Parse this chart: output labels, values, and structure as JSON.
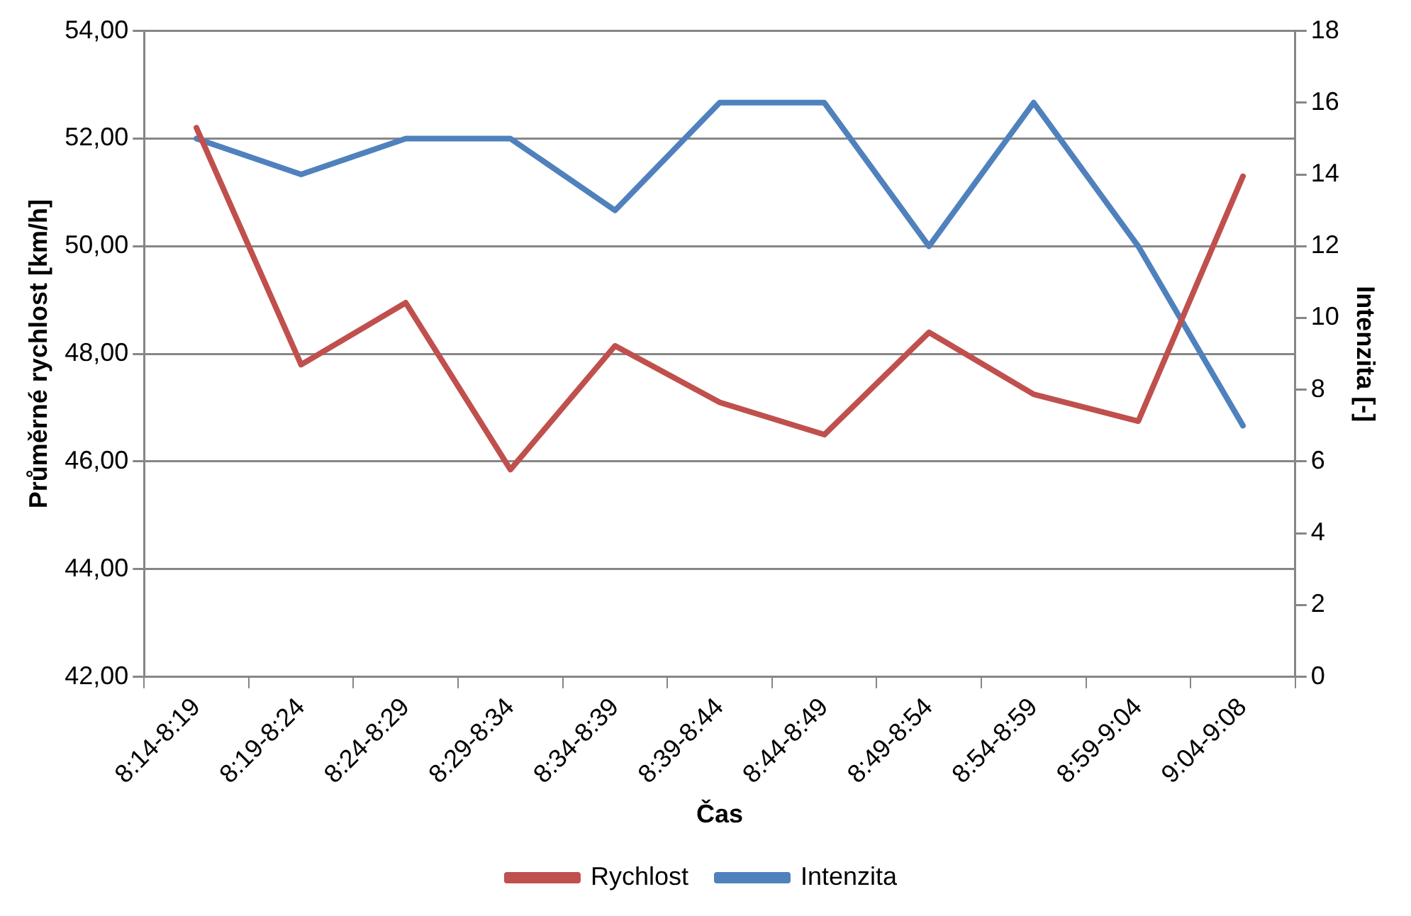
{
  "chart_data": {
    "type": "line",
    "xlabel": "Čas",
    "ylabel": "Průměrné rychlost [km/h]",
    "y2label": "Intenzita [-]",
    "categories": [
      "8:14-8:19",
      "8:19-8:24",
      "8:24-8:29",
      "8:29-8:34",
      "8:34-8:39",
      "8:39-8:44",
      "8:44-8:49",
      "8:49-8:54",
      "8:54-8:59",
      "8:59-9:04",
      "9:04-9:08"
    ],
    "series": [
      {
        "name": "Rychlost",
        "color": "#c0504d",
        "values": [
          52.2,
          47.8,
          48.95,
          45.85,
          48.15,
          47.1,
          46.5,
          48.4,
          47.25,
          46.75,
          51.3
        ]
      },
      {
        "name": "Intenzita",
        "color": "#4f81bd",
        "axis": "y2",
        "values": [
          15,
          14,
          15,
          15,
          13,
          16,
          16,
          12,
          16,
          12,
          7
        ]
      }
    ],
    "ylim": [
      42,
      54
    ],
    "yticks": [
      {
        "value": 42,
        "label": "42,00"
      },
      {
        "value": 44,
        "label": "44,00"
      },
      {
        "value": 46,
        "label": "46,00"
      },
      {
        "value": 48,
        "label": "48,00"
      },
      {
        "value": 50,
        "label": "50,00"
      },
      {
        "value": 52,
        "label": "52,00"
      },
      {
        "value": 54,
        "label": "54,00"
      }
    ],
    "y2lim": [
      0,
      18
    ],
    "y2ticks": [
      0,
      2,
      4,
      6,
      8,
      10,
      12,
      14,
      16,
      18
    ],
    "grid": "y",
    "legend": "bottom",
    "marker": "none",
    "line_style": "solid"
  }
}
